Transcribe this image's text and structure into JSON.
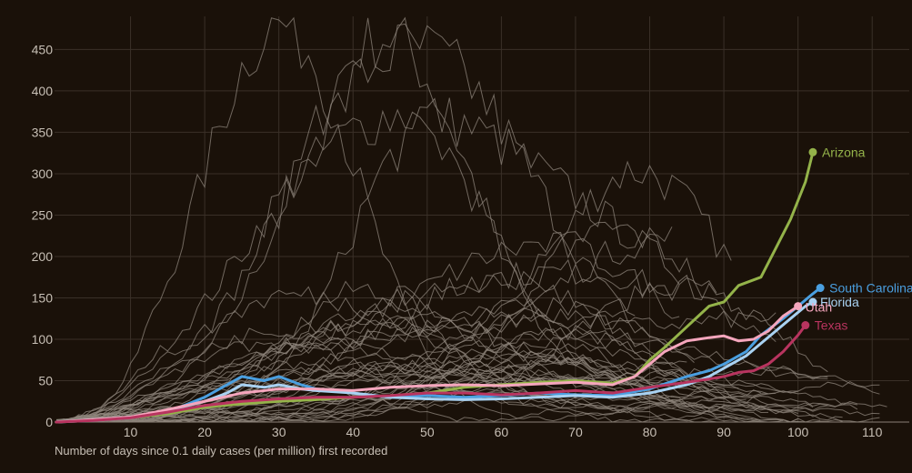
{
  "chart_data": {
    "type": "line",
    "title": "",
    "xlabel": "Number of days since 0.1 daily cases (per million) first recorded",
    "ylabel": "",
    "xlim": [
      0,
      115
    ],
    "ylim": [
      0,
      490
    ],
    "x_ticks": [
      10,
      20,
      30,
      40,
      50,
      60,
      70,
      80,
      90,
      100,
      110
    ],
    "y_ticks": [
      0,
      50,
      100,
      150,
      200,
      250,
      300,
      350,
      400,
      450
    ],
    "grid": true,
    "colors": {
      "background": "#1a1109",
      "grid": "#3a3028",
      "other_states": "#8f867c",
      "Arizona": "#94b34a",
      "South Carolina": "#4a9fe0",
      "Florida": "#a9d2f2",
      "Utah": "#f5a6bd",
      "Texas": "#b8345f"
    },
    "highlighted_series": [
      {
        "name": "Arizona",
        "points": [
          [
            0,
            0
          ],
          [
            5,
            2
          ],
          [
            10,
            5
          ],
          [
            15,
            10
          ],
          [
            20,
            18
          ],
          [
            25,
            22
          ],
          [
            30,
            25
          ],
          [
            35,
            27
          ],
          [
            40,
            30
          ],
          [
            45,
            32
          ],
          [
            50,
            35
          ],
          [
            55,
            42
          ],
          [
            60,
            45
          ],
          [
            65,
            48
          ],
          [
            70,
            50
          ],
          [
            75,
            47
          ],
          [
            78,
            55
          ],
          [
            80,
            75
          ],
          [
            82,
            90
          ],
          [
            85,
            115
          ],
          [
            88,
            140
          ],
          [
            90,
            145
          ],
          [
            92,
            165
          ],
          [
            95,
            175
          ],
          [
            97,
            210
          ],
          [
            99,
            245
          ],
          [
            101,
            290
          ],
          [
            102,
            326
          ]
        ]
      },
      {
        "name": "South Carolina",
        "points": [
          [
            0,
            0
          ],
          [
            5,
            2
          ],
          [
            10,
            5
          ],
          [
            15,
            12
          ],
          [
            20,
            30
          ],
          [
            23,
            45
          ],
          [
            25,
            55
          ],
          [
            28,
            50
          ],
          [
            30,
            55
          ],
          [
            33,
            45
          ],
          [
            35,
            40
          ],
          [
            38,
            38
          ],
          [
            40,
            35
          ],
          [
            45,
            30
          ],
          [
            50,
            32
          ],
          [
            55,
            30
          ],
          [
            60,
            32
          ],
          [
            65,
            35
          ],
          [
            70,
            33
          ],
          [
            75,
            32
          ],
          [
            80,
            40
          ],
          [
            85,
            55
          ],
          [
            88,
            62
          ],
          [
            90,
            70
          ],
          [
            93,
            85
          ],
          [
            95,
            105
          ],
          [
            98,
            125
          ],
          [
            100,
            140
          ],
          [
            102,
            155
          ],
          [
            103,
            162
          ]
        ]
      },
      {
        "name": "Florida",
        "points": [
          [
            0,
            0
          ],
          [
            5,
            3
          ],
          [
            10,
            6
          ],
          [
            15,
            14
          ],
          [
            20,
            25
          ],
          [
            23,
            35
          ],
          [
            25,
            45
          ],
          [
            28,
            42
          ],
          [
            30,
            45
          ],
          [
            33,
            40
          ],
          [
            35,
            38
          ],
          [
            40,
            35
          ],
          [
            45,
            30
          ],
          [
            50,
            28
          ],
          [
            55,
            27
          ],
          [
            60,
            28
          ],
          [
            65,
            30
          ],
          [
            70,
            32
          ],
          [
            75,
            30
          ],
          [
            80,
            35
          ],
          [
            85,
            45
          ],
          [
            88,
            55
          ],
          [
            90,
            65
          ],
          [
            93,
            80
          ],
          [
            95,
            95
          ],
          [
            97,
            110
          ],
          [
            99,
            125
          ],
          [
            101,
            140
          ],
          [
            102,
            145
          ]
        ]
      },
      {
        "name": "Utah",
        "points": [
          [
            0,
            0
          ],
          [
            5,
            3
          ],
          [
            10,
            6
          ],
          [
            15,
            15
          ],
          [
            20,
            25
          ],
          [
            25,
            35
          ],
          [
            30,
            40
          ],
          [
            35,
            40
          ],
          [
            40,
            38
          ],
          [
            45,
            42
          ],
          [
            50,
            44
          ],
          [
            55,
            45
          ],
          [
            60,
            44
          ],
          [
            65,
            46
          ],
          [
            70,
            48
          ],
          [
            75,
            45
          ],
          [
            78,
            55
          ],
          [
            80,
            70
          ],
          [
            82,
            85
          ],
          [
            85,
            98
          ],
          [
            88,
            102
          ],
          [
            90,
            104
          ],
          [
            92,
            98
          ],
          [
            94,
            100
          ],
          [
            96,
            110
          ],
          [
            98,
            128
          ],
          [
            100,
            140
          ]
        ]
      },
      {
        "name": "Texas",
        "points": [
          [
            0,
            0
          ],
          [
            5,
            2
          ],
          [
            10,
            5
          ],
          [
            15,
            12
          ],
          [
            20,
            20
          ],
          [
            25,
            25
          ],
          [
            30,
            28
          ],
          [
            35,
            30
          ],
          [
            40,
            30
          ],
          [
            45,
            32
          ],
          [
            50,
            35
          ],
          [
            55,
            35
          ],
          [
            60,
            33
          ],
          [
            65,
            35
          ],
          [
            70,
            38
          ],
          [
            75,
            35
          ],
          [
            80,
            42
          ],
          [
            85,
            48
          ],
          [
            88,
            52
          ],
          [
            90,
            55
          ],
          [
            92,
            60
          ],
          [
            94,
            62
          ],
          [
            96,
            70
          ],
          [
            98,
            85
          ],
          [
            100,
            105
          ],
          [
            101,
            117
          ]
        ]
      }
    ],
    "end_labels": [
      "Arizona",
      "South Carolina",
      "Florida",
      "Utah",
      "Texas"
    ]
  }
}
